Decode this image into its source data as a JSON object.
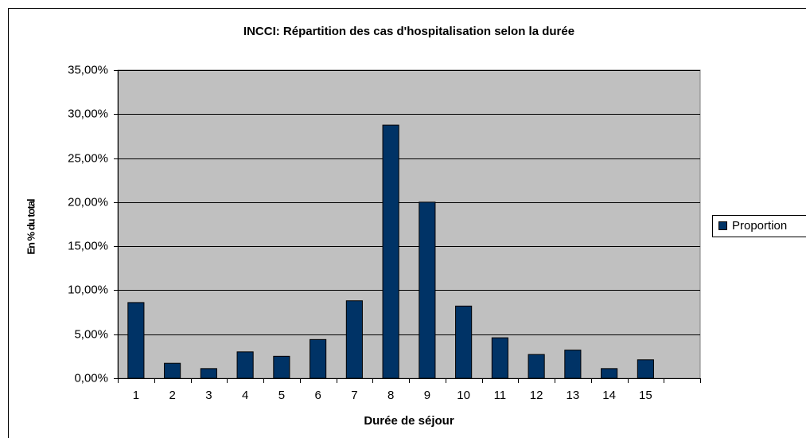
{
  "chart_data": {
    "type": "bar",
    "title": "INCCI: Répartition des cas d'hospitalisation selon la durée",
    "x_label": "Durée de séjour",
    "y_label": "En % du total",
    "categories": [
      "1",
      "2",
      "3",
      "4",
      "5",
      "6",
      "7",
      "8",
      "9",
      "10",
      "11",
      "12",
      "13",
      "14",
      "15",
      null
    ],
    "series": [
      {
        "name": "Proportion",
        "color": "#003366",
        "values": [
          8.6,
          1.7,
          1.1,
          3.0,
          2.5,
          4.4,
          8.8,
          28.75,
          20.0,
          8.2,
          4.6,
          2.7,
          3.2,
          1.1,
          2.1,
          null
        ]
      }
    ],
    "ylim": [
      0,
      35
    ],
    "yticks": [
      {
        "value": 0,
        "label": "0,00%"
      },
      {
        "value": 5,
        "label": "5,00%"
      },
      {
        "value": 10,
        "label": "10,00%"
      },
      {
        "value": 15,
        "label": "15,00%"
      },
      {
        "value": 20,
        "label": "20,00%"
      },
      {
        "value": 25,
        "label": "25,00%"
      },
      {
        "value": 30,
        "label": "30,00%"
      },
      {
        "value": 35,
        "label": "35,00%"
      }
    ],
    "grid": true,
    "legend": "right"
  }
}
